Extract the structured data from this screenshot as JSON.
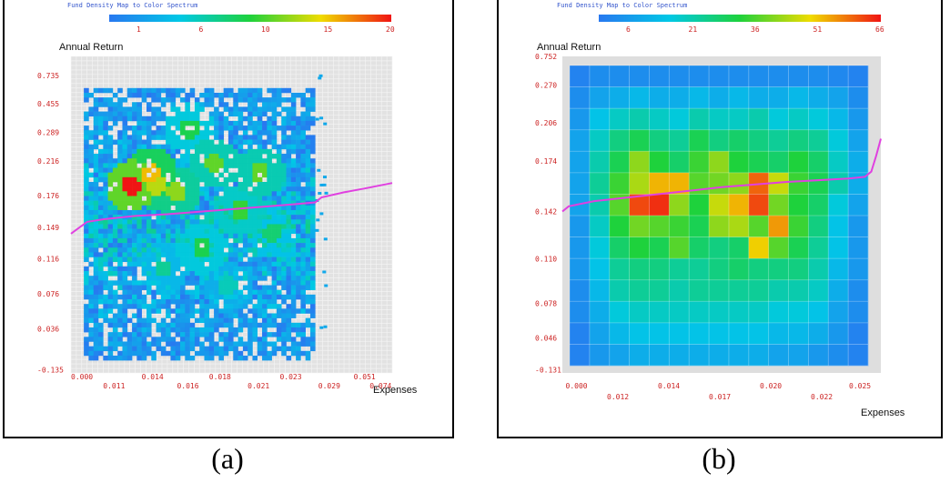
{
  "chart_data": [
    {
      "type": "heatmap",
      "caption": "(a)",
      "legend_title": "Fund Density Map to Color Spectrum",
      "legend_ticks": [
        "1",
        "6",
        "10",
        "15",
        "20"
      ],
      "legend_range": [
        1,
        20
      ],
      "ylabel": "Annual Return",
      "xlabel": "Expenses",
      "y_ticks": [
        "0.735",
        "0.455",
        "0.289",
        "0.216",
        "0.176",
        "0.149",
        "0.116",
        "0.076",
        "0.036",
        "-0.135"
      ],
      "x_ticks_upper": [
        "0.000",
        "0.014",
        "0.018",
        "0.023",
        "0.051"
      ],
      "x_ticks_lower": [
        "0.011",
        "0.016",
        "0.021",
        "0.029",
        "0.074"
      ],
      "grid": true,
      "trend_line_color": "#e040e0",
      "trend_line": [
        [
          0.0,
          0.132
        ],
        [
          0.05,
          0.146
        ],
        [
          0.1,
          0.149
        ],
        [
          0.2,
          0.153
        ],
        [
          0.3,
          0.155
        ],
        [
          0.4,
          0.158
        ],
        [
          0.5,
          0.161
        ],
        [
          0.6,
          0.164
        ],
        [
          0.7,
          0.167
        ],
        [
          0.76,
          0.169
        ],
        [
          0.78,
          0.175
        ],
        [
          0.85,
          0.181
        ],
        [
          0.92,
          0.186
        ],
        [
          1.0,
          0.192
        ]
      ],
      "hotspots": [
        {
          "x": 0.18,
          "y": 0.4,
          "value": 20
        },
        {
          "x": 0.24,
          "y": 0.36,
          "value": 16
        },
        {
          "x": 0.26,
          "y": 0.4,
          "value": 14
        },
        {
          "x": 0.32,
          "y": 0.42,
          "value": 13
        },
        {
          "x": 0.44,
          "y": 0.33,
          "value": 12
        },
        {
          "x": 0.58,
          "y": 0.36,
          "value": 12
        },
        {
          "x": 0.52,
          "y": 0.48,
          "value": 11
        },
        {
          "x": 0.36,
          "y": 0.22,
          "value": 10
        },
        {
          "x": 0.4,
          "y": 0.6,
          "value": 10
        },
        {
          "x": 0.62,
          "y": 0.55,
          "value": 9
        },
        {
          "x": 0.28,
          "y": 0.66,
          "value": 8
        },
        {
          "x": 0.48,
          "y": 0.72,
          "value": 7
        }
      ]
    },
    {
      "type": "heatmap",
      "caption": "(b)",
      "legend_title": "Fund Density Map to Color Spectrum",
      "legend_ticks": [
        "6",
        "21",
        "36",
        "51",
        "66"
      ],
      "legend_range": [
        6,
        66
      ],
      "ylabel": "Annual Return",
      "xlabel": "Expenses",
      "y_ticks": [
        "0.752",
        "0.270",
        "0.206",
        "0.174",
        "0.142",
        "0.110",
        "0.078",
        "0.046",
        "-0.131"
      ],
      "x_ticks_upper": [
        "0.000",
        "0.014",
        "0.020",
        "0.025"
      ],
      "x_ticks_lower": [
        "0.012",
        "0.017",
        "0.022"
      ],
      "grid": true,
      "trend_line_color": "#e040e0",
      "trend_line": [
        [
          0.0,
          0.14
        ],
        [
          0.02,
          0.143
        ],
        [
          0.1,
          0.146
        ],
        [
          0.3,
          0.15
        ],
        [
          0.5,
          0.154
        ],
        [
          0.7,
          0.157
        ],
        [
          0.9,
          0.159
        ],
        [
          0.95,
          0.16
        ],
        [
          0.97,
          0.163
        ],
        [
          0.985,
          0.172
        ],
        [
          1.0,
          0.182
        ]
      ],
      "grid_values": [
        [
          8,
          10,
          10,
          10,
          10,
          10,
          10,
          10,
          10,
          10,
          10,
          10,
          10,
          9,
          8
        ],
        [
          10,
          14,
          16,
          18,
          16,
          16,
          18,
          16,
          18,
          16,
          16,
          18,
          16,
          14,
          10
        ],
        [
          12,
          20,
          24,
          26,
          24,
          22,
          26,
          24,
          24,
          26,
          22,
          24,
          22,
          18,
          12
        ],
        [
          14,
          24,
          30,
          34,
          30,
          28,
          34,
          30,
          32,
          30,
          28,
          30,
          28,
          22,
          14
        ],
        [
          14,
          26,
          34,
          44,
          36,
          32,
          38,
          44,
          36,
          34,
          32,
          36,
          32,
          24,
          16
        ],
        [
          14,
          28,
          38,
          46,
          54,
          54,
          40,
          42,
          44,
          60,
          48,
          38,
          34,
          26,
          16
        ],
        [
          14,
          26,
          40,
          62,
          64,
          44,
          36,
          48,
          54,
          62,
          42,
          36,
          32,
          22,
          14
        ],
        [
          12,
          24,
          36,
          42,
          40,
          38,
          34,
          44,
          46,
          40,
          56,
          38,
          30,
          20,
          12
        ],
        [
          12,
          22,
          32,
          36,
          34,
          40,
          32,
          30,
          32,
          52,
          40,
          34,
          28,
          20,
          12
        ],
        [
          12,
          20,
          28,
          30,
          30,
          28,
          28,
          30,
          32,
          30,
          30,
          30,
          26,
          18,
          12
        ],
        [
          10,
          18,
          26,
          28,
          28,
          26,
          28,
          28,
          28,
          28,
          26,
          26,
          24,
          16,
          10
        ],
        [
          10,
          16,
          22,
          24,
          24,
          24,
          24,
          24,
          24,
          24,
          22,
          22,
          20,
          14,
          10
        ],
        [
          8,
          14,
          18,
          20,
          20,
          20,
          20,
          20,
          20,
          20,
          18,
          18,
          16,
          12,
          8
        ],
        [
          8,
          12,
          14,
          16,
          16,
          16,
          16,
          16,
          16,
          16,
          14,
          14,
          12,
          10,
          8
        ]
      ]
    }
  ]
}
